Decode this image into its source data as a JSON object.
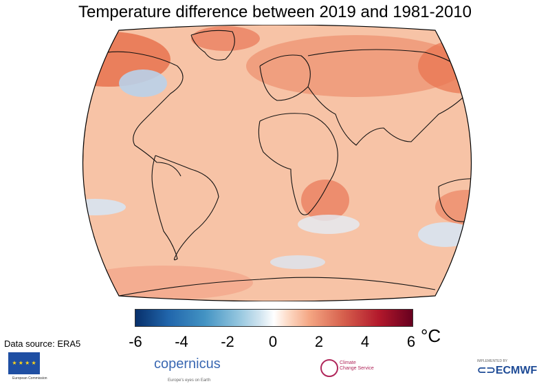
{
  "title": "Temperature difference between 2019 and 1981-2010",
  "colorbar": {
    "ticks": [
      "-6",
      "-4",
      "-2",
      "0",
      "2",
      "4",
      "6"
    ],
    "unit": "°C",
    "range": [
      -6,
      6
    ],
    "colors": [
      "#08306b",
      "#2166ac",
      "#92c5de",
      "#ffffff",
      "#f4a582",
      "#d6604d",
      "#67001f"
    ]
  },
  "source": "Data source: ERA5",
  "logos": {
    "eu": "European Commission",
    "copernicus": "opernicus",
    "copernicus_sub": "Europe's eyes on Earth",
    "c3s_line1": "Climate",
    "c3s_line2": "Change Service",
    "ecmwf_small": "IMPLEMENTED BY",
    "ecmwf": "ECMWF"
  }
}
